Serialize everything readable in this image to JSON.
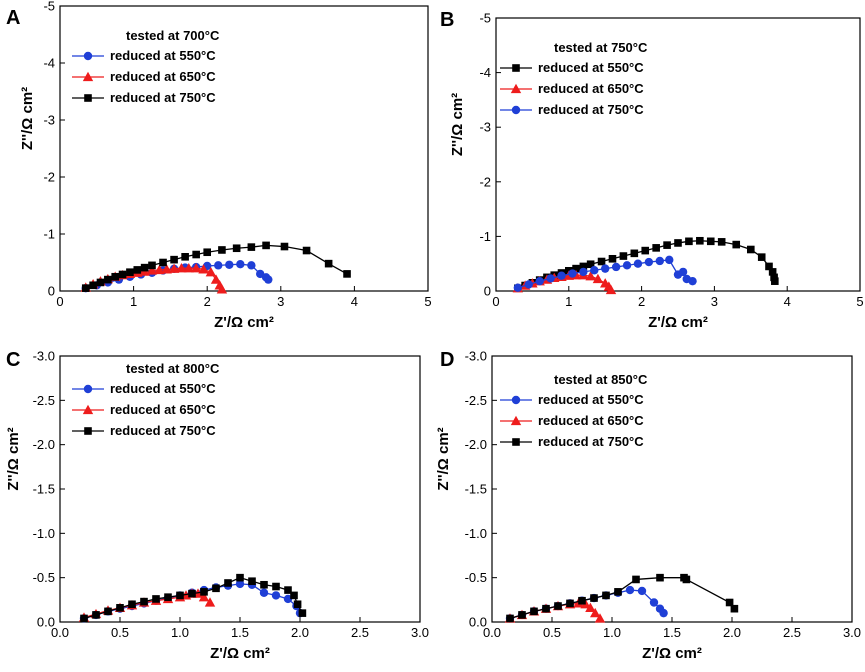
{
  "colors": {
    "blue": "#1f3fd6",
    "red": "#ee1c1c",
    "black": "#000000"
  },
  "chart_data": [
    {
      "type": "scatter",
      "panel_label": "A",
      "title": "tested at 700°C",
      "xlabel": "Z'/Ω cm²",
      "ylabel": "Z''/Ω cm²",
      "xlim": [
        0,
        5
      ],
      "ylim": [
        0,
        -5
      ],
      "xticks": [
        "0",
        "1",
        "2",
        "3",
        "4",
        "5"
      ],
      "yticks": [
        "0",
        "-1",
        "-2",
        "-3",
        "-4",
        "-5"
      ],
      "legend_position": "top-left",
      "series": [
        {
          "name": "reduced at 550°C",
          "color": "#1f3fd6",
          "marker": "circle",
          "x": [
            0.35,
            0.5,
            0.65,
            0.8,
            0.95,
            1.1,
            1.25,
            1.4,
            1.55,
            1.7,
            1.85,
            2.0,
            2.15,
            2.3,
            2.45,
            2.6,
            2.72,
            2.8,
            2.83
          ],
          "y": [
            -0.05,
            -0.1,
            -0.15,
            -0.2,
            -0.25,
            -0.29,
            -0.32,
            -0.36,
            -0.39,
            -0.41,
            -0.42,
            -0.44,
            -0.45,
            -0.46,
            -0.47,
            -0.45,
            -0.3,
            -0.24,
            -0.2
          ]
        },
        {
          "name": "reduced at 650°C",
          "color": "#ee1c1c",
          "marker": "triangle",
          "x": [
            0.35,
            0.45,
            0.55,
            0.65,
            0.75,
            0.85,
            0.95,
            1.05,
            1.15,
            1.25,
            1.35,
            1.45,
            1.55,
            1.65,
            1.75,
            1.85,
            1.95,
            2.05,
            2.12,
            2.17,
            2.2
          ],
          "y": [
            -0.06,
            -0.12,
            -0.17,
            -0.21,
            -0.25,
            -0.28,
            -0.3,
            -0.32,
            -0.34,
            -0.36,
            -0.37,
            -0.38,
            -0.39,
            -0.4,
            -0.4,
            -0.4,
            -0.38,
            -0.33,
            -0.2,
            -0.1,
            -0.03
          ]
        },
        {
          "name": "reduced at 750°C",
          "color": "#000000",
          "marker": "square",
          "x": [
            0.35,
            0.45,
            0.55,
            0.65,
            0.75,
            0.85,
            0.95,
            1.05,
            1.15,
            1.25,
            1.4,
            1.55,
            1.7,
            1.85,
            2.0,
            2.2,
            2.4,
            2.6,
            2.8,
            3.05,
            3.35,
            3.65,
            3.9
          ],
          "y": [
            -0.05,
            -0.1,
            -0.15,
            -0.2,
            -0.25,
            -0.29,
            -0.33,
            -0.37,
            -0.41,
            -0.45,
            -0.5,
            -0.55,
            -0.6,
            -0.64,
            -0.68,
            -0.72,
            -0.75,
            -0.77,
            -0.8,
            -0.78,
            -0.71,
            -0.48,
            -0.3
          ]
        }
      ]
    },
    {
      "type": "scatter",
      "panel_label": "B",
      "title": "tested at 750°C",
      "xlabel": "Z'/Ω cm²",
      "ylabel": "Z''/Ω cm²",
      "xlim": [
        0,
        5
      ],
      "ylim": [
        0,
        -5
      ],
      "xticks": [
        "0",
        "1",
        "2",
        "3",
        "4",
        "5"
      ],
      "yticks": [
        "0",
        "-1",
        "-2",
        "-3",
        "-4",
        "-5"
      ],
      "legend_position": "top-left",
      "series": [
        {
          "name": "reduced at 550°C",
          "color": "#000000",
          "marker": "square",
          "x": [
            0.3,
            0.4,
            0.5,
            0.6,
            0.7,
            0.8,
            0.9,
            1.0,
            1.1,
            1.2,
            1.3,
            1.45,
            1.6,
            1.75,
            1.9,
            2.05,
            2.2,
            2.35,
            2.5,
            2.65,
            2.8,
            2.95,
            3.1,
            3.3,
            3.5,
            3.65,
            3.75,
            3.8,
            3.82,
            3.83
          ],
          "y": [
            -0.05,
            -0.1,
            -0.15,
            -0.2,
            -0.25,
            -0.29,
            -0.33,
            -0.37,
            -0.41,
            -0.45,
            -0.49,
            -0.54,
            -0.59,
            -0.64,
            -0.69,
            -0.74,
            -0.79,
            -0.84,
            -0.88,
            -0.91,
            -0.92,
            -0.91,
            -0.9,
            -0.85,
            -0.76,
            -0.62,
            -0.45,
            -0.35,
            -0.25,
            -0.18
          ]
        },
        {
          "name": "reduced at 650°C",
          "color": "#ee1c1c",
          "marker": "triangle",
          "x": [
            0.3,
            0.4,
            0.5,
            0.6,
            0.7,
            0.8,
            0.9,
            1.0,
            1.1,
            1.2,
            1.3,
            1.4,
            1.5,
            1.55,
            1.58
          ],
          "y": [
            -0.05,
            -0.1,
            -0.14,
            -0.18,
            -0.21,
            -0.24,
            -0.26,
            -0.28,
            -0.29,
            -0.29,
            -0.27,
            -0.22,
            -0.14,
            -0.08,
            -0.02
          ]
        },
        {
          "name": "reduced at 750°C",
          "color": "#1f3fd6",
          "marker": "circle",
          "x": [
            0.3,
            0.45,
            0.6,
            0.75,
            0.9,
            1.05,
            1.2,
            1.35,
            1.5,
            1.65,
            1.8,
            1.95,
            2.1,
            2.25,
            2.38,
            2.5,
            2.57,
            2.62,
            2.7
          ],
          "y": [
            -0.06,
            -0.12,
            -0.18,
            -0.23,
            -0.28,
            -0.32,
            -0.35,
            -0.38,
            -0.41,
            -0.44,
            -0.47,
            -0.5,
            -0.53,
            -0.55,
            -0.57,
            -0.3,
            -0.35,
            -0.22,
            -0.18
          ]
        }
      ]
    },
    {
      "type": "scatter",
      "panel_label": "C",
      "title": "tested at 800°C",
      "xlabel": "Z'/Ω cm²",
      "ylabel": "Z''/Ω cm²",
      "xlim": [
        0,
        3.0
      ],
      "ylim": [
        0,
        -3.0
      ],
      "xticks": [
        "0.0",
        "0.5",
        "1.0",
        "1.5",
        "2.0",
        "2.5",
        "3.0"
      ],
      "yticks": [
        "0.0",
        "-0.5",
        "-1.0",
        "-1.5",
        "-2.0",
        "-2.5",
        "-3.0"
      ],
      "legend_position": "top-left",
      "series": [
        {
          "name": "reduced at 550°C",
          "color": "#1f3fd6",
          "marker": "circle",
          "x": [
            0.2,
            0.3,
            0.4,
            0.5,
            0.6,
            0.7,
            0.8,
            0.9,
            1.0,
            1.1,
            1.2,
            1.3,
            1.4,
            1.5,
            1.6,
            1.7,
            1.8,
            1.9,
            1.97,
            2.0
          ],
          "y": [
            -0.04,
            -0.08,
            -0.12,
            -0.15,
            -0.18,
            -0.21,
            -0.24,
            -0.27,
            -0.3,
            -0.33,
            -0.36,
            -0.39,
            -0.41,
            -0.43,
            -0.42,
            -0.33,
            -0.3,
            -0.26,
            -0.18,
            -0.1
          ]
        },
        {
          "name": "reduced at 650°C",
          "color": "#ee1c1c",
          "marker": "triangle",
          "x": [
            0.2,
            0.3,
            0.4,
            0.5,
            0.6,
            0.7,
            0.8,
            0.9,
            1.0,
            1.05,
            1.1,
            1.15,
            1.2,
            1.25
          ],
          "y": [
            -0.05,
            -0.09,
            -0.13,
            -0.16,
            -0.19,
            -0.22,
            -0.24,
            -0.26,
            -0.28,
            -0.3,
            -0.32,
            -0.32,
            -0.28,
            -0.22
          ]
        },
        {
          "name": "reduced at 750°C",
          "color": "#000000",
          "marker": "square",
          "x": [
            0.2,
            0.3,
            0.4,
            0.5,
            0.6,
            0.7,
            0.8,
            0.9,
            1.0,
            1.1,
            1.2,
            1.3,
            1.4,
            1.5,
            1.6,
            1.7,
            1.8,
            1.9,
            1.95,
            1.98,
            2.02
          ],
          "y": [
            -0.04,
            -0.08,
            -0.12,
            -0.16,
            -0.2,
            -0.23,
            -0.26,
            -0.28,
            -0.3,
            -0.32,
            -0.34,
            -0.38,
            -0.44,
            -0.5,
            -0.46,
            -0.42,
            -0.4,
            -0.36,
            -0.3,
            -0.2,
            -0.1
          ]
        }
      ]
    },
    {
      "type": "scatter",
      "panel_label": "D",
      "title": "tested at 850°C",
      "xlabel": "Z'/Ω cm²",
      "ylabel": "Z''/Ω cm²",
      "xlim": [
        0,
        3.0
      ],
      "ylim": [
        0,
        -3.0
      ],
      "xticks": [
        "0.0",
        "0.5",
        "1.0",
        "1.5",
        "2.0",
        "2.5",
        "3.0"
      ],
      "yticks": [
        "0.0",
        "-0.5",
        "-1.0",
        "-1.5",
        "-2.0",
        "-2.5",
        "-3.0"
      ],
      "legend_position": "top-left",
      "series": [
        {
          "name": "reduced at 550°C",
          "color": "#1f3fd6",
          "marker": "circle",
          "x": [
            0.15,
            0.25,
            0.35,
            0.45,
            0.55,
            0.65,
            0.75,
            0.85,
            0.95,
            1.05,
            1.15,
            1.25,
            1.35,
            1.4,
            1.43
          ],
          "y": [
            -0.04,
            -0.08,
            -0.12,
            -0.15,
            -0.18,
            -0.21,
            -0.24,
            -0.27,
            -0.3,
            -0.33,
            -0.36,
            -0.35,
            -0.22,
            -0.15,
            -0.1
          ]
        },
        {
          "name": "reduced at 650°C",
          "color": "#ee1c1c",
          "marker": "triangle",
          "x": [
            0.15,
            0.25,
            0.35,
            0.45,
            0.55,
            0.65,
            0.72,
            0.78,
            0.82,
            0.86,
            0.9
          ],
          "y": [
            -0.04,
            -0.08,
            -0.12,
            -0.15,
            -0.18,
            -0.2,
            -0.21,
            -0.2,
            -0.16,
            -0.1,
            -0.04
          ]
        },
        {
          "name": "reduced at 750°C",
          "color": "#000000",
          "marker": "square",
          "x": [
            0.15,
            0.25,
            0.35,
            0.45,
            0.55,
            0.65,
            0.75,
            0.85,
            0.95,
            1.05,
            1.2,
            1.4,
            1.6,
            1.62,
            1.98,
            2.02
          ],
          "y": [
            -0.04,
            -0.08,
            -0.12,
            -0.15,
            -0.18,
            -0.21,
            -0.24,
            -0.27,
            -0.3,
            -0.34,
            -0.48,
            -0.5,
            -0.5,
            -0.48,
            -0.22,
            -0.15
          ]
        }
      ]
    }
  ]
}
